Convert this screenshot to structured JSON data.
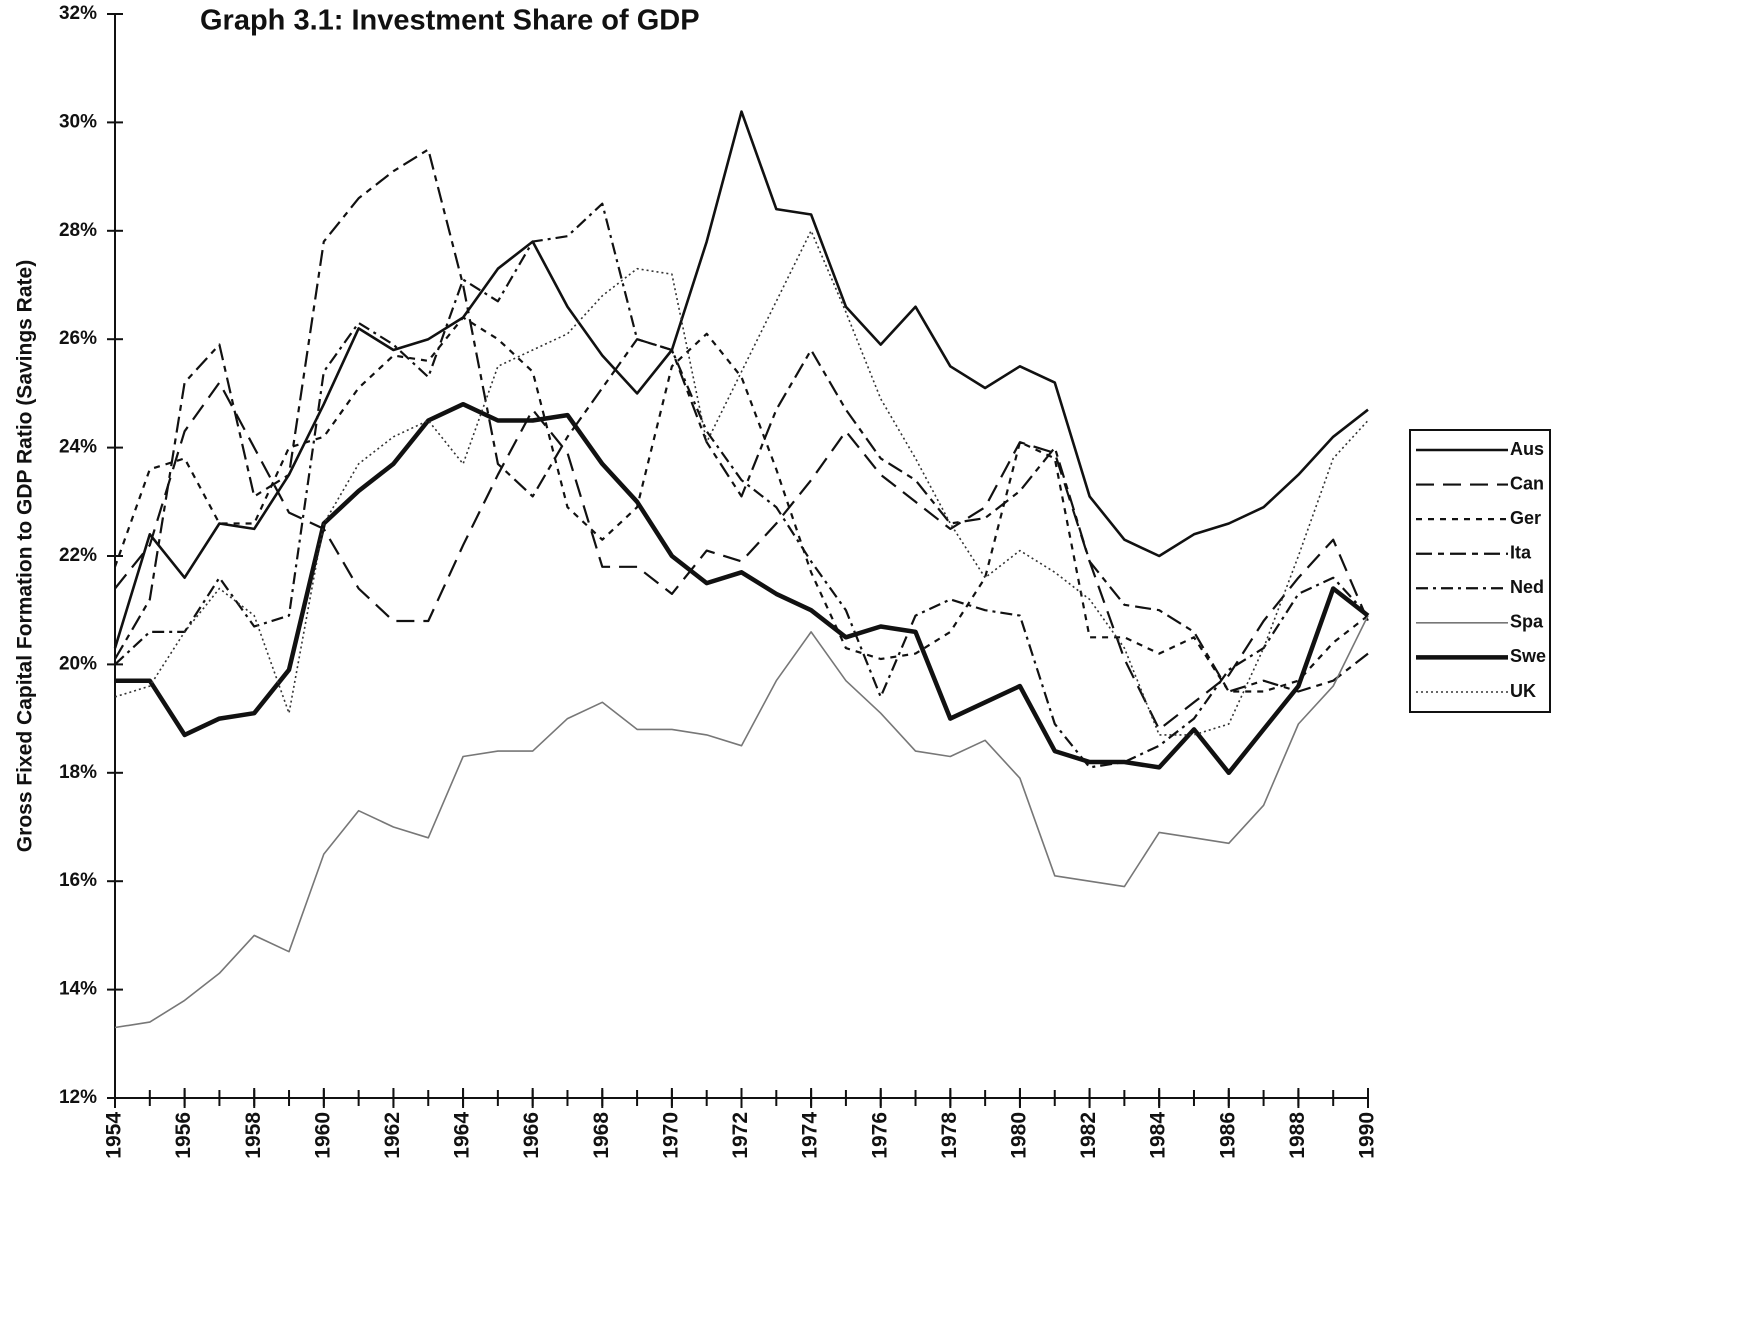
{
  "chart_data": {
    "type": "line",
    "title": "Graph 3.1: Investment Share of GDP",
    "y_label": "Gross Fixed Capital Formation to GDP Ratio (Savings Rate)",
    "x": [
      1954,
      1955,
      1956,
      1957,
      1958,
      1959,
      1960,
      1961,
      1962,
      1963,
      1964,
      1965,
      1966,
      1967,
      1968,
      1969,
      1970,
      1971,
      1972,
      1973,
      1974,
      1975,
      1976,
      1977,
      1978,
      1979,
      1980,
      1981,
      1982,
      1983,
      1984,
      1985,
      1986,
      1987,
      1988,
      1989,
      1990
    ],
    "xlim": [
      1954,
      1990
    ],
    "xticks": [
      1954,
      1956,
      1958,
      1960,
      1962,
      1964,
      1966,
      1968,
      1970,
      1972,
      1974,
      1976,
      1978,
      1980,
      1982,
      1984,
      1986,
      1988,
      1990
    ],
    "ylim": [
      12,
      32
    ],
    "yticks": [
      {
        "value": 12,
        "label": "12%"
      },
      {
        "value": 14,
        "label": "14%"
      },
      {
        "value": 16,
        "label": "16%"
      },
      {
        "value": 18,
        "label": "18%"
      },
      {
        "value": 20,
        "label": "20%"
      },
      {
        "value": 22,
        "label": "22%"
      },
      {
        "value": 24,
        "label": "24%"
      },
      {
        "value": 26,
        "label": "26%"
      },
      {
        "value": 28,
        "label": "28%"
      },
      {
        "value": 30,
        "label": "30%"
      },
      {
        "value": 32,
        "label": "32%"
      }
    ],
    "grid": false,
    "legend": "right",
    "series": [
      {
        "name": "Aus",
        "color": "#111111",
        "width": 2.6,
        "dash": "none",
        "values": [
          20.3,
          22.4,
          21.6,
          22.6,
          22.5,
          23.5,
          24.8,
          26.2,
          25.8,
          26.0,
          26.4,
          27.3,
          27.8,
          26.6,
          25.7,
          25.0,
          25.8,
          27.8,
          30.2,
          28.4,
          28.3,
          26.6,
          25.9,
          26.6,
          25.5,
          25.1,
          25.5,
          25.2,
          23.1,
          22.3,
          22.0,
          22.4,
          22.6,
          22.9,
          23.5,
          24.2,
          24.7
        ]
      },
      {
        "name": "Can",
        "color": "#111111",
        "width": 2.2,
        "dash": "18,9",
        "values": [
          21.4,
          22.2,
          24.3,
          25.2,
          24.0,
          22.8,
          22.5,
          21.4,
          20.8,
          20.8,
          22.2,
          23.5,
          24.7,
          23.9,
          21.8,
          21.8,
          21.3,
          22.1,
          21.9,
          22.6,
          23.4,
          24.3,
          23.5,
          23.0,
          22.5,
          22.9,
          24.1,
          23.9,
          21.9,
          20.1,
          18.8,
          19.3,
          19.8,
          20.8,
          21.6,
          22.3,
          20.8
        ]
      },
      {
        "name": "Ger",
        "color": "#111111",
        "width": 2.2,
        "dash": "6,6",
        "values": [
          21.8,
          23.6,
          23.8,
          22.6,
          22.6,
          24.0,
          24.2,
          25.1,
          25.7,
          25.6,
          26.4,
          26.0,
          25.4,
          22.9,
          22.3,
          22.9,
          25.5,
          26.1,
          25.3,
          23.6,
          21.7,
          20.3,
          20.1,
          20.2,
          20.6,
          21.6,
          24.1,
          23.8,
          20.5,
          20.5,
          20.2,
          20.5,
          19.5,
          19.5,
          19.7,
          20.4,
          20.9
        ]
      },
      {
        "name": "Ita",
        "color": "#111111",
        "width": 2.2,
        "dash": "16,6,6,6",
        "values": [
          20.1,
          21.2,
          25.2,
          25.9,
          23.1,
          23.5,
          27.8,
          28.6,
          29.1,
          29.5,
          27.0,
          23.7,
          23.1,
          24.2,
          25.1,
          26.0,
          25.8,
          24.1,
          23.1,
          24.7,
          25.8,
          24.7,
          23.8,
          23.4,
          22.6,
          22.7,
          23.2,
          24.0,
          21.9,
          21.1,
          21.0,
          20.6,
          19.5,
          19.7,
          19.5,
          19.7,
          20.2
        ]
      },
      {
        "name": "Ned",
        "color": "#111111",
        "width": 2.2,
        "dash": "12,5,3,5",
        "values": [
          20.0,
          20.6,
          20.6,
          21.6,
          20.7,
          20.9,
          25.4,
          26.3,
          25.9,
          25.3,
          27.1,
          26.7,
          27.8,
          27.9,
          28.5,
          26.0,
          25.8,
          24.3,
          23.4,
          22.9,
          21.9,
          21.0,
          19.4,
          20.9,
          21.2,
          21.0,
          20.9,
          18.9,
          18.1,
          18.2,
          18.5,
          19.0,
          19.9,
          20.3,
          21.3,
          21.6,
          20.9
        ]
      },
      {
        "name": "Spa",
        "color": "#777777",
        "width": 1.6,
        "dash": "none",
        "values": [
          13.3,
          13.4,
          13.8,
          14.3,
          15.0,
          14.7,
          16.5,
          17.3,
          17.0,
          16.8,
          18.3,
          18.4,
          18.4,
          19.0,
          19.3,
          18.8,
          18.8,
          18.7,
          18.5,
          19.7,
          20.6,
          19.7,
          19.1,
          18.4,
          18.3,
          18.6,
          17.9,
          16.1,
          16.0,
          15.9,
          16.9,
          16.8,
          16.7,
          17.4,
          18.9,
          19.6,
          20.9
        ]
      },
      {
        "name": "Swe",
        "color": "#111111",
        "width": 4.5,
        "dash": "none",
        "values": [
          19.7,
          19.7,
          18.7,
          19.0,
          19.1,
          19.9,
          22.6,
          23.2,
          23.7,
          24.5,
          24.8,
          24.5,
          24.5,
          24.6,
          23.7,
          23.0,
          22.0,
          21.5,
          21.7,
          21.3,
          21.0,
          20.5,
          20.7,
          20.6,
          19.0,
          19.3,
          19.6,
          18.4,
          18.2,
          18.2,
          18.1,
          18.8,
          18.0,
          18.8,
          19.6,
          21.4,
          20.9
        ]
      },
      {
        "name": "UK",
        "color": "#333333",
        "width": 1.6,
        "dash": "2,3",
        "values": [
          19.4,
          19.6,
          20.6,
          21.4,
          20.9,
          19.1,
          22.6,
          23.7,
          24.2,
          24.5,
          23.7,
          25.5,
          25.8,
          26.1,
          26.8,
          27.3,
          27.2,
          24.1,
          25.4,
          26.7,
          28.0,
          26.5,
          24.9,
          23.8,
          22.6,
          21.6,
          22.1,
          21.7,
          21.2,
          20.3,
          18.7,
          18.7,
          18.9,
          20.3,
          22.0,
          23.8,
          24.5
        ]
      }
    ]
  }
}
